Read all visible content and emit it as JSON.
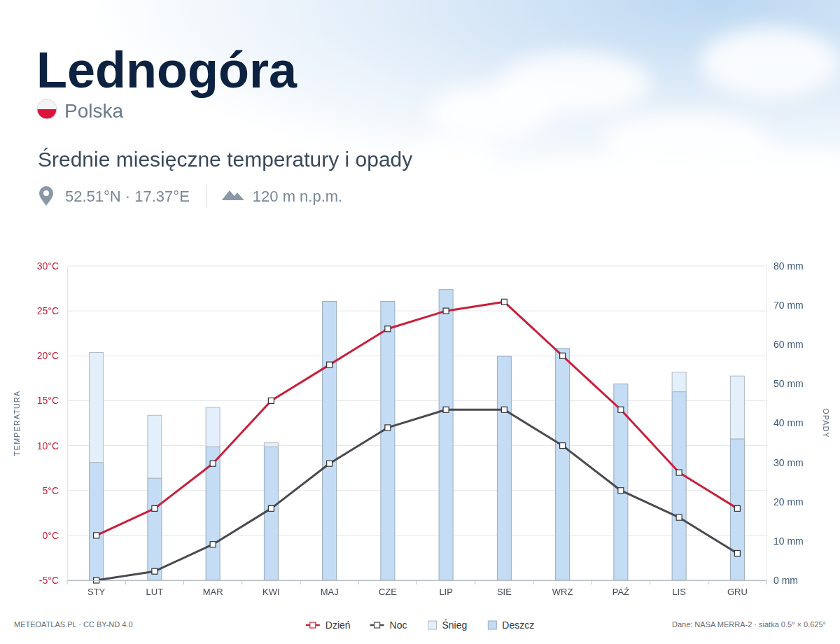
{
  "chart_data": {
    "type": "bar",
    "title": "Lednogóra",
    "subtitle": "Średnie miesięczne temperatury i opady",
    "annotations": [
      "Polska",
      "52.51°N · 17.37°E",
      "120 m n.p.m.",
      "METEOATLAS.PL · CC BY-ND 4.0",
      "Dane: NASA MERRA-2 · siatka 0.5° × 0.625°"
    ],
    "ylabel": "TEMPERATURA",
    "y2label": "OPADY",
    "categories": [
      "STY",
      "LUT",
      "MAR",
      "KWI",
      "MAJ",
      "CZE",
      "LIP",
      "SIE",
      "WRZ",
      "PAŹ",
      "LIS",
      "GRU"
    ],
    "series": [
      {
        "name": "Dzień",
        "type": "line",
        "color": "#c8203c",
        "marker": "square",
        "values": [
          0,
          3,
          8,
          15,
          19,
          23,
          25,
          26,
          20,
          14,
          7,
          3
        ]
      },
      {
        "name": "Noc",
        "type": "line",
        "color": "#4a4a50",
        "marker": "square",
        "values": [
          -5,
          -4,
          -1,
          3,
          8,
          12,
          14,
          14,
          10,
          5,
          2,
          -2
        ]
      },
      {
        "name": "Śnieg",
        "type": "bar",
        "axis": "y2",
        "color": "#e3effb",
        "values": [
          28,
          16,
          10,
          1,
          0,
          0,
          0,
          0,
          0,
          0,
          5,
          16
        ]
      },
      {
        "name": "Deszcz",
        "type": "bar",
        "axis": "y2",
        "color": "#c5dcf5",
        "values": [
          30,
          26,
          34,
          34,
          71,
          71,
          74,
          57,
          59,
          50,
          48,
          36
        ]
      }
    ],
    "stacked": true,
    "grid": true,
    "legend": "bottom",
    "ylim": [
      -5,
      30
    ],
    "yticks": [
      {
        "value": -5,
        "label": "-5°C"
      },
      {
        "value": 0,
        "label": "0°C"
      },
      {
        "value": 5,
        "label": "5°C"
      },
      {
        "value": 10,
        "label": "10°C"
      },
      {
        "value": 15,
        "label": "15°C"
      },
      {
        "value": 20,
        "label": "20°C"
      },
      {
        "value": 25,
        "label": "25°C"
      },
      {
        "value": 30,
        "label": "30°C"
      }
    ],
    "y2lim": [
      0,
      80
    ],
    "y2ticks": [
      {
        "value": 0,
        "label": "0 mm"
      },
      {
        "value": 10,
        "label": "10 mm"
      },
      {
        "value": 20,
        "label": "20 mm"
      },
      {
        "value": 30,
        "label": "30 mm"
      },
      {
        "value": 40,
        "label": "40 mm"
      },
      {
        "value": 50,
        "label": "50 mm"
      },
      {
        "value": 60,
        "label": "60 mm"
      },
      {
        "value": 70,
        "label": "70 mm"
      },
      {
        "value": 80,
        "label": "80 mm"
      }
    ]
  }
}
